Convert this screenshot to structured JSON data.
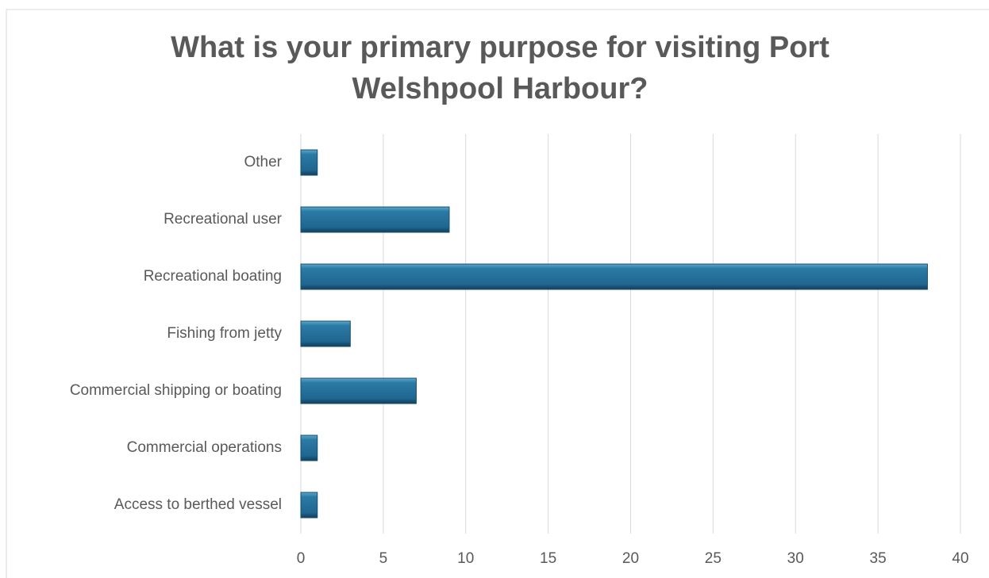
{
  "chart_data": {
    "type": "barh",
    "title": "What is your primary purpose for visiting Port Welshpool Harbour?",
    "categories": [
      "Other",
      "Recreational user",
      "Recreational boating",
      "Fishing from jetty",
      "Commercial shipping or boating",
      "Commercial operations",
      "Access to berthed vessel"
    ],
    "values": [
      1,
      9,
      38,
      3,
      7,
      1,
      1
    ],
    "color": "#21678f",
    "xlim": [
      0,
      40
    ],
    "xticks": [
      0,
      5,
      10,
      15,
      20,
      25,
      30,
      35,
      40
    ],
    "grid": true
  }
}
